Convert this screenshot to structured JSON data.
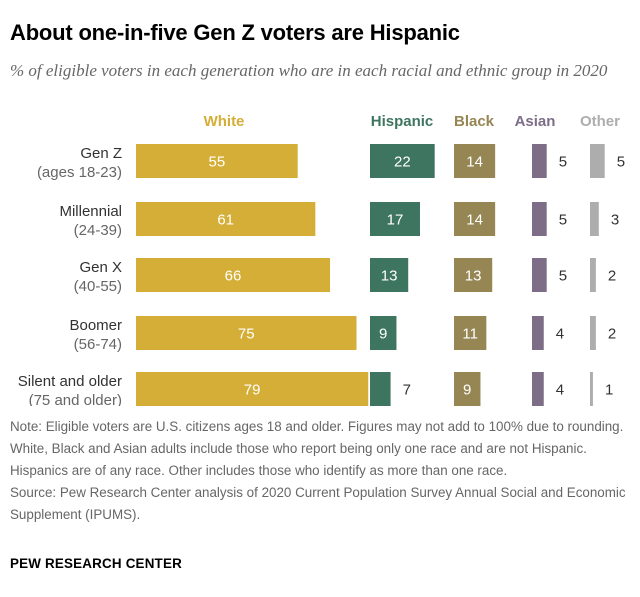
{
  "title": "About one-in-five Gen Z voters are Hispanic",
  "subtitle": "% of eligible voters in each generation who are in each racial and ethnic group in 2020",
  "chart_data": {
    "type": "bar",
    "layout": "small-multiples-horizontal",
    "categories": [
      [
        "Gen Z",
        "(ages 18-23)"
      ],
      [
        "Millennial",
        "(24-39)"
      ],
      [
        "Gen X",
        "(40-55)"
      ],
      [
        "Boomer",
        "(56-74)"
      ],
      [
        "Silent and older",
        "(75 and older)"
      ]
    ],
    "series": [
      {
        "name": "White",
        "color": "#D4AE36",
        "values": [
          55,
          61,
          66,
          75,
          79
        ]
      },
      {
        "name": "Hispanic",
        "color": "#3E7560",
        "values": [
          22,
          17,
          13,
          9,
          7
        ]
      },
      {
        "name": "Black",
        "color": "#958654",
        "values": [
          14,
          14,
          13,
          11,
          9
        ]
      },
      {
        "name": "Asian",
        "color": "#7D6D87",
        "values": [
          5,
          5,
          5,
          4,
          4
        ]
      },
      {
        "name": "Other",
        "color": "#ADADAD",
        "values": [
          5,
          3,
          2,
          2,
          1
        ]
      }
    ],
    "value_labels": "inside-or-beside-bar",
    "grid": false
  },
  "note": "Note: Eligible voters are U.S. citizens ages 18 and older. Figures may not add to 100% due to rounding. White, Black and Asian adults include those who report being only one race and are not Hispanic. Hispanics are of any race. Other includes those who identify as more than one race.",
  "source": "Source: Pew Research Center analysis of 2020 Current Population Survey Annual Social and Economic Supplement (IPUMS).",
  "credit": "PEW RESEARCH CENTER"
}
